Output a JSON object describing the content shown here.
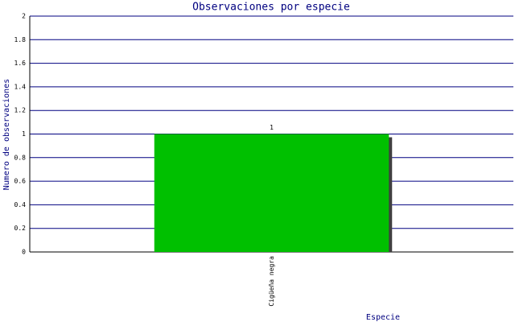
{
  "chart_data": {
    "type": "bar",
    "title": "Observaciones por especie",
    "x_label": "Especie",
    "y_label": "Numero de observaciones",
    "categories": [
      "Cigüeña negra"
    ],
    "values": [
      1
    ],
    "color": "#00c000",
    "ylim": [
      0,
      2
    ],
    "yticks": [
      0,
      0.2,
      0.4,
      0.6,
      0.8,
      1,
      1.2,
      1.4,
      1.6,
      1.8,
      2
    ],
    "grid": true
  }
}
